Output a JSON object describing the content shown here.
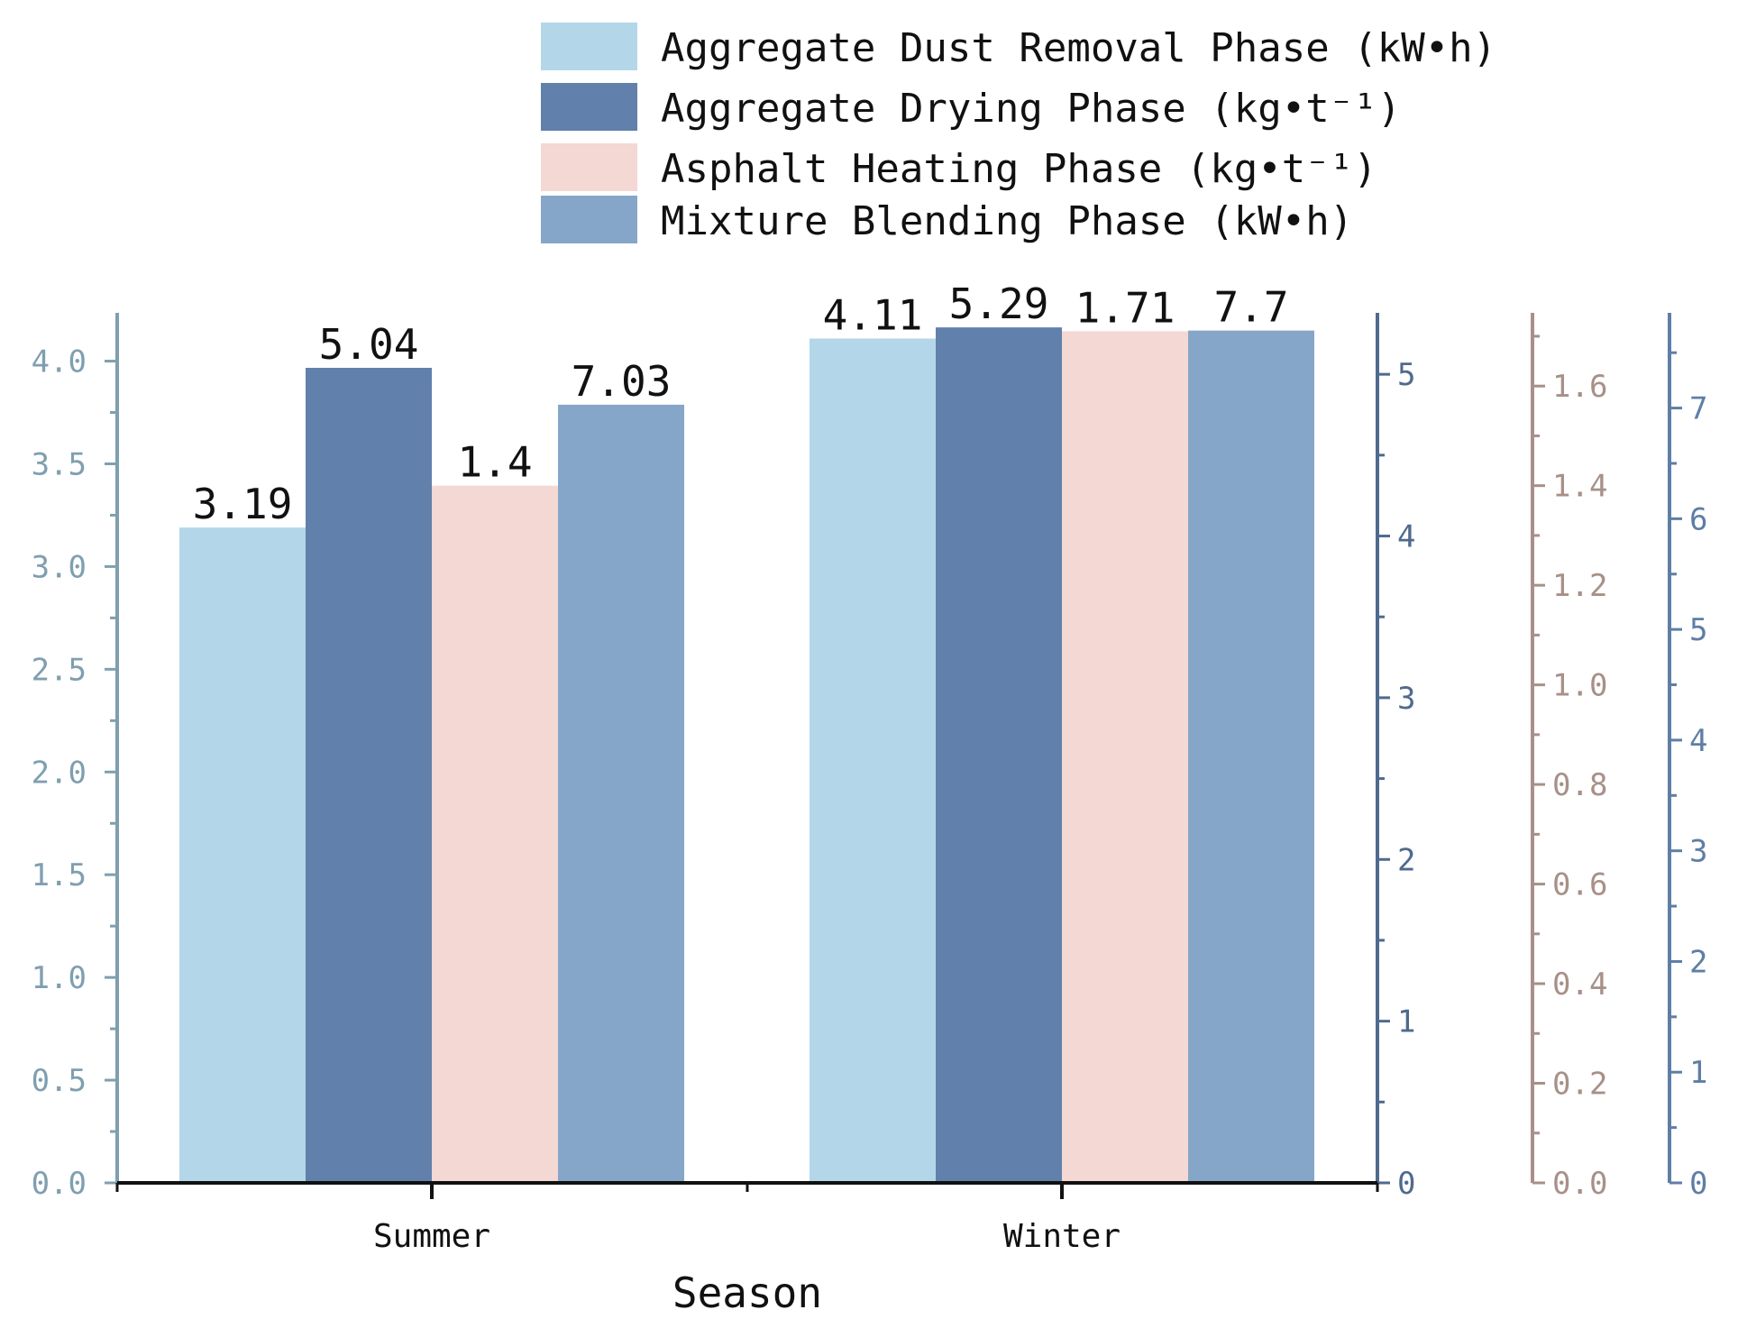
{
  "chart_data": {
    "type": "bar",
    "categories": [
      "Summer",
      "Winter"
    ],
    "xlabel": "Season",
    "series": [
      {
        "name": "Aggregate Dust Removal Phase (kW•h)",
        "values": [
          3.19,
          4.11
        ],
        "labels": [
          "3.19",
          "4.11"
        ],
        "color": "#b3d7e8",
        "axis": 0
      },
      {
        "name": "Aggregate Drying Phase (kg•t⁻¹)",
        "values": [
          5.04,
          5.29
        ],
        "labels": [
          "5.04",
          "5.29"
        ],
        "color": "#6180ab",
        "axis": 1
      },
      {
        "name": "Asphalt Heating Phase (kg•t⁻¹)",
        "values": [
          1.4,
          1.71
        ],
        "labels": [
          "1.4",
          "1.71"
        ],
        "color": "#f3d8d3",
        "axis": 2
      },
      {
        "name": "Mixture Blending Phase (kW•h)",
        "values": [
          7.03,
          7.7
        ],
        "labels": [
          "7.03",
          "7.7"
        ],
        "color": "#86a6c9",
        "axis": 3
      }
    ],
    "axes": [
      {
        "side": "left",
        "range": [
          0,
          4.235
        ],
        "ticks": [
          "0.0",
          "0.5",
          "1.0",
          "1.5",
          "2.0",
          "2.5",
          "3.0",
          "3.5",
          "4.0"
        ],
        "color": "#7f9fb0"
      },
      {
        "side": "right",
        "range": [
          0,
          5.38
        ],
        "ticks": [
          "0",
          "1",
          "2",
          "3",
          "4",
          "5"
        ],
        "color": "#4f6a8e"
      },
      {
        "side": "right",
        "range": [
          0,
          1.747
        ],
        "ticks": [
          "0.0",
          "0.2",
          "0.4",
          "0.6",
          "0.8",
          "1.0",
          "1.2",
          "1.4",
          "1.6"
        ],
        "color": "#a89088"
      },
      {
        "side": "right",
        "range": [
          0,
          7.86
        ],
        "ticks": [
          "0",
          "1",
          "2",
          "3",
          "4",
          "5",
          "6",
          "7"
        ],
        "color": "#5f7ea6"
      }
    ],
    "legend": "top",
    "grid": false
  }
}
